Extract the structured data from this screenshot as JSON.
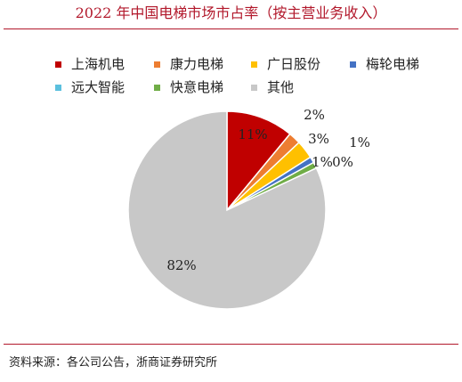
{
  "title": "2022 年中国电梯市场市占率（按主营业务收入）",
  "source": "资料来源：各公司公告，浙商证券研究所",
  "chart_data": {
    "type": "pie",
    "title": "2022 年中国电梯市场市占率（按主营业务收入）",
    "categories": [
      "上海机电",
      "康力电梯",
      "广日股份",
      "梅轮电梯",
      "远大智能",
      "快意电梯",
      "其他"
    ],
    "values": [
      11,
      2,
      3,
      1,
      0,
      1,
      82
    ],
    "labels": [
      "11%",
      "2%",
      "3%",
      "1%",
      "0%",
      "1%",
      "82%"
    ],
    "colors": [
      "#c00000",
      "#ed7d31",
      "#ffc000",
      "#4472c4",
      "#5bc0de",
      "#70ad47",
      "#c8c8c8"
    ],
    "legend_position": "top"
  }
}
